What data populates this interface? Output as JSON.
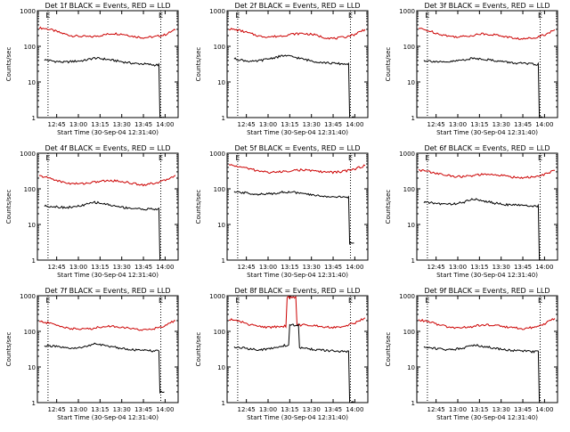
{
  "chart_data": [
    {
      "type": "line",
      "title": "Det 1f BLACK = Events, RED = LLD",
      "ylabel": "Counts/sec",
      "xlabel": "Start Time (30-Sep-04 12:31:40)",
      "xticks": [
        "12:45",
        "13:00",
        "13:15",
        "13:30",
        "13:45",
        "14:00"
      ],
      "yticks": [
        "1",
        "10",
        "100",
        "1000"
      ],
      "ylim": [
        1,
        1000
      ],
      "yscale": "log",
      "markers": [
        "E",
        "E"
      ],
      "series": [
        {
          "color": "#cc0000",
          "values": [
            330,
            300,
            240,
            200,
            190,
            185,
            205,
            230,
            220,
            190,
            175,
            185,
            210,
            290
          ]
        },
        {
          "color": "#000000",
          "values": [
            42,
            38,
            36,
            38,
            40,
            47,
            44,
            40,
            36,
            33,
            32,
            30,
            1
          ]
        }
      ]
    },
    {
      "type": "line",
      "title": "Det 2f BLACK = Events, RED = LLD",
      "ylabel": "Counts/sec",
      "xlabel": "Start Time (30-Sep-04 12:31:40)",
      "xticks": [
        "12:45",
        "13:00",
        "13:15",
        "13:30",
        "13:45",
        "14:00"
      ],
      "yticks": [
        "1",
        "10",
        "100",
        "1000"
      ],
      "ylim": [
        1,
        1000
      ],
      "yscale": "log",
      "markers": [
        "E",
        "E"
      ],
      "series": [
        {
          "color": "#cc0000",
          "values": [
            310,
            280,
            230,
            190,
            185,
            195,
            220,
            230,
            215,
            180,
            165,
            180,
            215,
            300
          ]
        },
        {
          "color": "#000000",
          "values": [
            45,
            40,
            37,
            42,
            48,
            55,
            50,
            43,
            38,
            35,
            33,
            32,
            1
          ]
        }
      ]
    },
    {
      "type": "line",
      "title": "Det 3f BLACK = Events, RED = LLD",
      "ylabel": "Counts/sec",
      "xlabel": "Start Time (30-Sep-04 12:31:40)",
      "xticks": [
        "12:45",
        "13:00",
        "13:15",
        "13:30",
        "13:45",
        "14:00"
      ],
      "yticks": [
        "1",
        "10",
        "100",
        "1000"
      ],
      "ylim": [
        1,
        1000
      ],
      "yscale": "log",
      "markers": [
        "E",
        "E"
      ],
      "series": [
        {
          "color": "#cc0000",
          "values": [
            320,
            270,
            220,
            190,
            185,
            200,
            225,
            215,
            195,
            170,
            160,
            175,
            210,
            290
          ]
        },
        {
          "color": "#000000",
          "values": [
            40,
            38,
            35,
            38,
            42,
            46,
            44,
            40,
            37,
            34,
            33,
            31,
            1
          ]
        }
      ]
    },
    {
      "type": "line",
      "title": "Det 4f BLACK = Events, RED = LLD",
      "ylabel": "Counts/sec",
      "xlabel": "Start Time (30-Sep-04 12:31:40)",
      "xticks": [
        "12:45",
        "13:00",
        "13:15",
        "13:30",
        "13:45",
        "14:00"
      ],
      "yticks": [
        "1",
        "10",
        "100",
        "1000"
      ],
      "ylim": [
        1,
        1000
      ],
      "yscale": "log",
      "markers": [
        "E",
        "E"
      ],
      "series": [
        {
          "color": "#cc0000",
          "values": [
            230,
            200,
            160,
            140,
            140,
            150,
            165,
            170,
            160,
            140,
            130,
            145,
            170,
            240
          ]
        },
        {
          "color": "#000000",
          "values": [
            33,
            32,
            30,
            31,
            35,
            42,
            38,
            33,
            30,
            28,
            27,
            27,
            1
          ]
        }
      ]
    },
    {
      "type": "line",
      "title": "Det 5f BLACK = Events, RED = LLD",
      "ylabel": "Counts/sec",
      "xlabel": "Start Time (30-Sep-04 12:31:40)",
      "xticks": [
        "12:45",
        "13:00",
        "13:15",
        "13:30",
        "13:45",
        "14:00"
      ],
      "yticks": [
        "1",
        "10",
        "100",
        "1000"
      ],
      "ylim": [
        1,
        1000
      ],
      "yscale": "log",
      "markers": [
        "E",
        "E"
      ],
      "series": [
        {
          "color": "#cc0000",
          "values": [
            470,
            420,
            360,
            310,
            290,
            300,
            330,
            340,
            320,
            300,
            290,
            310,
            360,
            450
          ]
        },
        {
          "color": "#000000",
          "values": [
            80,
            78,
            72,
            70,
            75,
            82,
            80,
            72,
            66,
            62,
            60,
            58,
            3
          ]
        }
      ]
    },
    {
      "type": "line",
      "title": "Det 6f BLACK = Events, RED = LLD",
      "ylabel": "Counts/sec",
      "xlabel": "Start Time (30-Sep-04 12:31:40)",
      "xticks": [
        "12:45",
        "13:00",
        "13:15",
        "13:30",
        "13:45",
        "14:00"
      ],
      "yticks": [
        "1",
        "10",
        "100",
        "1000"
      ],
      "ylim": [
        1,
        1000
      ],
      "yscale": "log",
      "markers": [
        "E",
        "E"
      ],
      "series": [
        {
          "color": "#cc0000",
          "values": [
            340,
            300,
            260,
            230,
            220,
            230,
            250,
            250,
            235,
            215,
            205,
            215,
            250,
            330
          ]
        },
        {
          "color": "#000000",
          "values": [
            42,
            40,
            37,
            38,
            42,
            52,
            46,
            40,
            37,
            35,
            34,
            33,
            1
          ]
        }
      ]
    },
    {
      "type": "line",
      "title": "Det 7f BLACK = Events, RED = LLD",
      "ylabel": "Counts/sec",
      "xlabel": "Start Time (30-Sep-04 12:31:40)",
      "xticks": [
        "12:45",
        "13:00",
        "13:15",
        "13:30",
        "13:45",
        "14:00"
      ],
      "yticks": [
        "1",
        "10",
        "100",
        "1000"
      ],
      "ylim": [
        1,
        1000
      ],
      "yscale": "log",
      "markers": [
        "E",
        "E"
      ],
      "series": [
        {
          "color": "#cc0000",
          "values": [
            190,
            170,
            140,
            120,
            115,
            120,
            135,
            140,
            130,
            115,
            110,
            120,
            145,
            200
          ]
        },
        {
          "color": "#000000",
          "values": [
            40,
            38,
            34,
            33,
            37,
            44,
            40,
            36,
            33,
            30,
            29,
            28,
            2
          ]
        }
      ]
    },
    {
      "type": "line",
      "title": "Det 8f BLACK = Events, RED = LLD",
      "ylabel": "Counts/sec",
      "xlabel": "Start Time (30-Sep-04 12:31:40)",
      "xticks": [
        "12:45",
        "13:00",
        "13:15",
        "13:30",
        "13:45",
        "14:00"
      ],
      "yticks": [
        "1",
        "10",
        "100",
        "1000"
      ],
      "ylim": [
        1,
        1000
      ],
      "yscale": "log",
      "markers": [
        "E",
        "E"
      ],
      "series": [
        {
          "color": "#cc0000",
          "values": [
            220,
            190,
            155,
            135,
            130,
            140,
            900,
            150,
            150,
            135,
            130,
            140,
            170,
            240
          ]
        },
        {
          "color": "#000000",
          "values": [
            36,
            34,
            31,
            31,
            34,
            40,
            150,
            34,
            31,
            29,
            28,
            27,
            1
          ]
        }
      ]
    },
    {
      "type": "line",
      "title": "Det 9f BLACK = Events, RED = LLD",
      "ylabel": "Counts/sec",
      "xlabel": "Start Time (30-Sep-04 12:31:40)",
      "xticks": [
        "12:45",
        "13:00",
        "13:15",
        "13:30",
        "13:45",
        "14:00"
      ],
      "yticks": [
        "1",
        "10",
        "100",
        "1000"
      ],
      "ylim": [
        1,
        1000
      ],
      "yscale": "log",
      "markers": [
        "E",
        "E"
      ],
      "series": [
        {
          "color": "#cc0000",
          "values": [
            210,
            185,
            150,
            130,
            125,
            135,
            150,
            150,
            140,
            125,
            120,
            130,
            160,
            230
          ]
        },
        {
          "color": "#000000",
          "values": [
            36,
            34,
            31,
            31,
            35,
            42,
            38,
            34,
            31,
            29,
            28,
            27,
            1
          ]
        }
      ]
    }
  ]
}
